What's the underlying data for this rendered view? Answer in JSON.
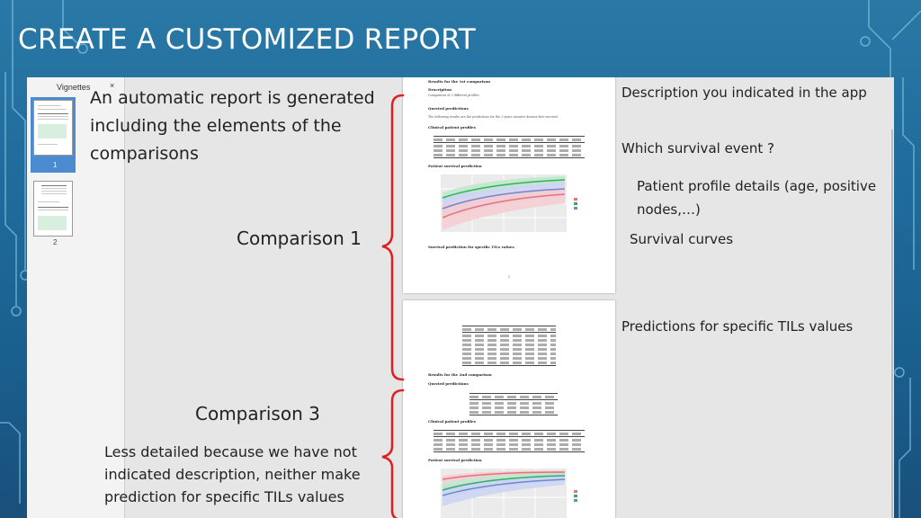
{
  "slide": {
    "title": "CREATE A CUSTOMIZED REPORT"
  },
  "viewer": {
    "panel_title": "Vignettes",
    "close_glyph": "×",
    "pages": [
      {
        "label": "1"
      },
      {
        "label": "2"
      }
    ]
  },
  "annotations": {
    "intro": "An automatic report is generated including the elements of the comparisons",
    "comparison1": "Comparison 1",
    "comparison3": "Comparison 3",
    "less_detailed": "Less detailed because we have not indicated description, neither make prediction for specific TILs values",
    "description": "Description you indicated in the app",
    "survival_event": "Which survival event ?",
    "profile_details": "Patient profile details (age, positive nodes,…)",
    "survival_curves": "Survival curves",
    "predictions": "Predictions for specific TILs values"
  },
  "document": {
    "page1": {
      "heading": "Results for the 1st comparison",
      "description_label": "Description",
      "description_text": "Comparison of 3 different profiles",
      "queried_label": "Queried predictions",
      "queried_text": "The following results are the predictions for the 3 years invasive disease free survival",
      "clinical_label": "Clinical patient profiles",
      "survival_label": "Patient survival prediction",
      "specific_label": "Survival prediction for specific TILs values",
      "page_number": "1"
    },
    "page2": {
      "heading": "Results for the 2nd comparison",
      "queried_label": "Queried predictions",
      "clinical_label": "Clinical patient profiles",
      "survival_label": "Patient survival prediction"
    }
  },
  "colors": {
    "background": "#1f6c9c",
    "brace": "#e02020",
    "thumb_selected": "#4c8bd0",
    "curve_green": "#2db35a",
    "curve_blue": "#6f86d8",
    "curve_red": "#e8707a"
  }
}
